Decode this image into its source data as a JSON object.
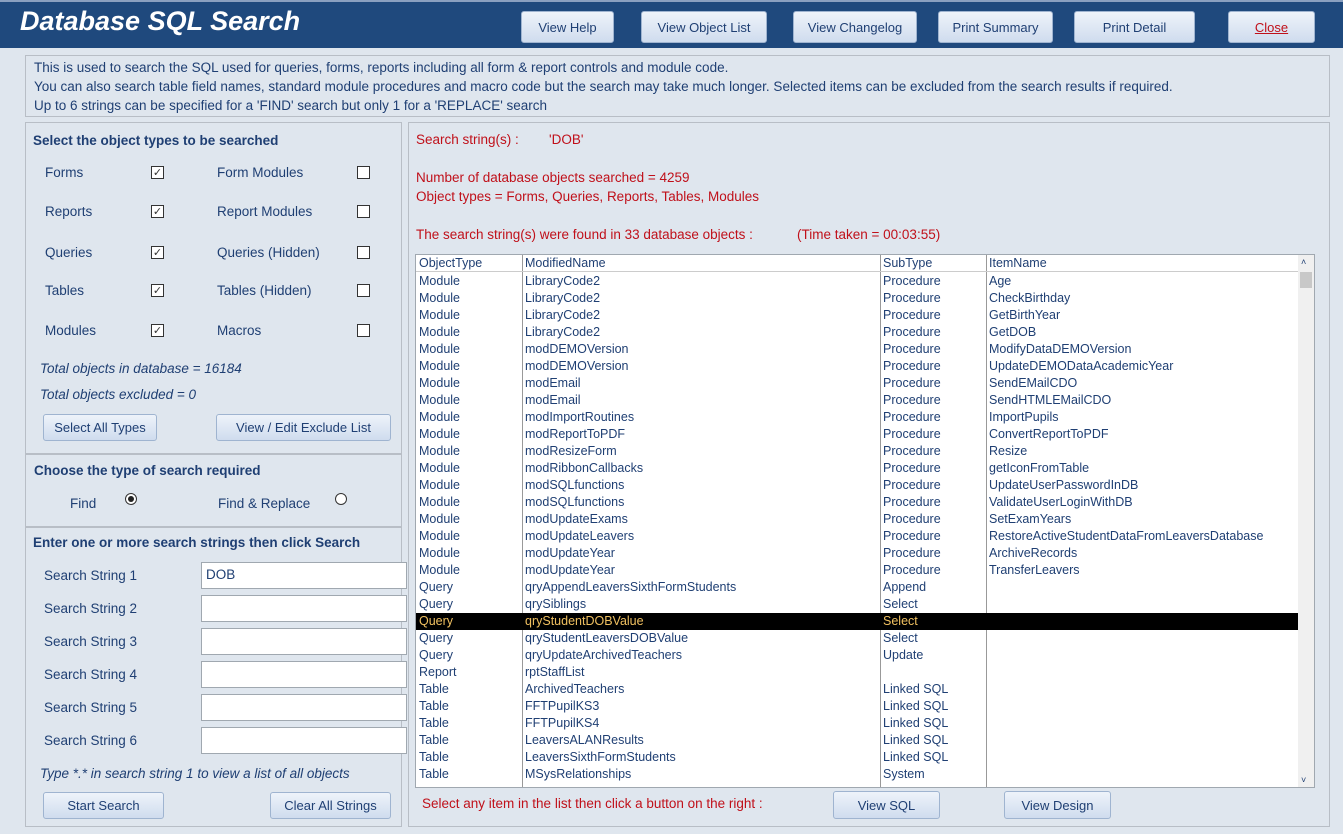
{
  "header": {
    "title": "Database SQL Search",
    "buttons": [
      "View Help",
      "View Object List",
      "View Changelog",
      "Print Summary",
      "Print Detail",
      "Close"
    ]
  },
  "info": [
    "This is used to search the SQL used for queries, forms, reports including all form & report controls and module code.",
    "You can also search table field names, standard module procedures and macro code but the search may take much longer. Selected items can be excluded from the search results if required.",
    "Up to 6 strings can be specified for a 'FIND' search but only 1 for a 'REPLACE' search"
  ],
  "types": {
    "heading": "Select the object types to be searched",
    "items": [
      {
        "label": "Forms",
        "checked": true
      },
      {
        "label": "Form Modules",
        "checked": false
      },
      {
        "label": "Reports",
        "checked": true
      },
      {
        "label": "Report Modules",
        "checked": false
      },
      {
        "label": "Queries",
        "checked": true
      },
      {
        "label": "Queries (Hidden)",
        "checked": false
      },
      {
        "label": "Tables",
        "checked": true
      },
      {
        "label": "Tables (Hidden)",
        "checked": false
      },
      {
        "label": "Modules",
        "checked": true
      },
      {
        "label": "Macros",
        "checked": false
      }
    ],
    "total": "Total objects in database = 16184",
    "excluded": "Total objects excluded = 0",
    "select_all": "Select All Types",
    "exclude_list": "View / Edit Exclude List"
  },
  "search_type": {
    "heading": "Choose the type of search required",
    "find": "Find",
    "replace": "Find & Replace",
    "selected": "Find"
  },
  "strings": {
    "heading": "Enter one or more search strings then click Search",
    "labels": [
      "Search String 1",
      "Search String 2",
      "Search String 3",
      "Search String 4",
      "Search String 5",
      "Search String 6"
    ],
    "values": [
      "DOB",
      "",
      "",
      "",
      "",
      ""
    ],
    "hint": "Type *.* in search string 1 to view a list of all objects",
    "start": "Start Search",
    "clear": "Clear All Strings"
  },
  "results": {
    "search_label": "Search string(s) :",
    "search_value": "'DOB'",
    "searched": "Number of database objects searched = 4259",
    "types": "Object types = Forms, Queries, Reports, Tables, Modules",
    "found": "The search string(s) were found in 33 database objects :",
    "time": "(Time taken = 00:03:55)",
    "columns": [
      "ObjectType",
      "ModifiedName",
      "SubType",
      "ItemName"
    ],
    "selected_index": 20,
    "rows": [
      [
        "Module",
        "LibraryCode2",
        "Procedure",
        "Age"
      ],
      [
        "Module",
        "LibraryCode2",
        "Procedure",
        "CheckBirthday"
      ],
      [
        "Module",
        "LibraryCode2",
        "Procedure",
        "GetBirthYear"
      ],
      [
        "Module",
        "LibraryCode2",
        "Procedure",
        "GetDOB"
      ],
      [
        "Module",
        "modDEMOVersion",
        "Procedure",
        "ModifyDataDEMOVersion"
      ],
      [
        "Module",
        "modDEMOVersion",
        "Procedure",
        "UpdateDEMODataAcademicYear"
      ],
      [
        "Module",
        "modEmail",
        "Procedure",
        "SendEMailCDO"
      ],
      [
        "Module",
        "modEmail",
        "Procedure",
        "SendHTMLEMailCDO"
      ],
      [
        "Module",
        "modImportRoutines",
        "Procedure",
        "ImportPupils"
      ],
      [
        "Module",
        "modReportToPDF",
        "Procedure",
        "ConvertReportToPDF"
      ],
      [
        "Module",
        "modResizeForm",
        "Procedure",
        "Resize"
      ],
      [
        "Module",
        "modRibbonCallbacks",
        "Procedure",
        "getIconFromTable"
      ],
      [
        "Module",
        "modSQLfunctions",
        "Procedure",
        "UpdateUserPasswordInDB"
      ],
      [
        "Module",
        "modSQLfunctions",
        "Procedure",
        "ValidateUserLoginWithDB"
      ],
      [
        "Module",
        "modUpdateExams",
        "Procedure",
        "SetExamYears"
      ],
      [
        "Module",
        "modUpdateLeavers",
        "Procedure",
        "RestoreActiveStudentDataFromLeaversDatabase"
      ],
      [
        "Module",
        "modUpdateYear",
        "Procedure",
        "ArchiveRecords"
      ],
      [
        "Module",
        "modUpdateYear",
        "Procedure",
        "TransferLeavers"
      ],
      [
        "Query",
        "qryAppendLeaversSixthFormStudents",
        "Append",
        ""
      ],
      [
        "Query",
        "qrySiblings",
        "Select",
        ""
      ],
      [
        "Query",
        "qryStudentDOBValue",
        "Select",
        ""
      ],
      [
        "Query",
        "qryStudentLeaversDOBValue",
        "Select",
        ""
      ],
      [
        "Query",
        "qryUpdateArchivedTeachers",
        "Update",
        ""
      ],
      [
        "Report",
        "rptStaffList",
        "",
        ""
      ],
      [
        "Table",
        "ArchivedTeachers",
        "Linked SQL",
        ""
      ],
      [
        "Table",
        "FFTPupilKS3",
        "Linked SQL",
        ""
      ],
      [
        "Table",
        "FFTPupilKS4",
        "Linked SQL",
        ""
      ],
      [
        "Table",
        "LeaversALANResults",
        "Linked SQL",
        ""
      ],
      [
        "Table",
        "LeaversSixthFormStudents",
        "Linked SQL",
        ""
      ],
      [
        "Table",
        "MSysRelationships",
        "System",
        ""
      ]
    ],
    "footer": "Select any item in the list then click a button on the right :",
    "view_sql": "View SQL",
    "view_design": "View Design"
  }
}
